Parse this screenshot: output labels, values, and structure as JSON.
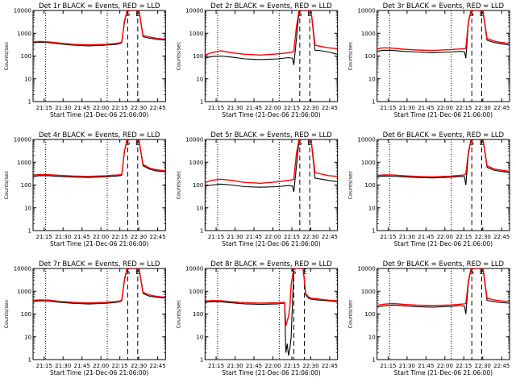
{
  "window": {
    "title": "Detector event and LLD count-rate plots"
  },
  "colors": {
    "events": "#000000",
    "lld": "#ff0000",
    "background": "#ffffff"
  },
  "chart_data": [
    {
      "type": "line",
      "title": "Det 1r BLACK = Events, RED = LLD",
      "ylabel": "Counts/sec",
      "xlabel": "Start Time (21-Dec-06 21:06:00)",
      "ylim": [
        1,
        10000
      ],
      "yscale": "log",
      "xlim": [
        0,
        100
      ],
      "xticks": [
        "21:15",
        "21:30",
        "21:45",
        "22:00",
        "22:15",
        "22:30",
        "22:45"
      ],
      "yticks": [
        "1",
        "10",
        "100",
        "1000",
        "10000"
      ],
      "markers": {
        "S": 71.5,
        "E": 79
      },
      "series": [
        {
          "name": "Events",
          "x": [
            0,
            5,
            12,
            20,
            30,
            42,
            55,
            63,
            66,
            67,
            69,
            71,
            72,
            74,
            78,
            80,
            83,
            88,
            93,
            100
          ],
          "y": [
            380,
            400,
            390,
            340,
            300,
            280,
            300,
            330,
            360,
            400,
            3000,
            10000,
            10000,
            10000,
            10000,
            9000,
            700,
            600,
            550,
            500
          ]
        },
        {
          "name": "LLD",
          "x": [
            0,
            5,
            12,
            20,
            30,
            42,
            55,
            63,
            66,
            67,
            69,
            71,
            72,
            74,
            78,
            80,
            83,
            88,
            93,
            100
          ],
          "y": [
            420,
            440,
            420,
            370,
            330,
            310,
            330,
            360,
            390,
            420,
            3500,
            10000,
            10000,
            10000,
            10000,
            10000,
            800,
            680,
            600,
            540
          ]
        }
      ]
    },
    {
      "type": "line",
      "title": "Det 2r BLACK = Events, RED = LLD",
      "ylabel": "Counts/sec",
      "xlabel": "Start Time (21-Dec-06 21:06:00)",
      "ylim": [
        1,
        10000
      ],
      "yscale": "log",
      "xlim": [
        0,
        100
      ],
      "xticks": [
        "21:15",
        "21:30",
        "21:45",
        "22:00",
        "22:15",
        "22:30",
        "22:45"
      ],
      "yticks": [
        "1",
        "10",
        "100",
        "1000",
        "10000"
      ],
      "markers": {
        "S": 71.5,
        "E": 79
      },
      "series": [
        {
          "name": "Events",
          "x": [
            0,
            5,
            12,
            20,
            30,
            42,
            55,
            63,
            66,
            67,
            69,
            71,
            72,
            74,
            78,
            80,
            83,
            88,
            93,
            100
          ],
          "y": [
            80,
            95,
            100,
            90,
            75,
            70,
            75,
            85,
            80,
            40,
            600,
            10000,
            10000,
            10000,
            10000,
            10000,
            180,
            170,
            150,
            120
          ]
        },
        {
          "name": "LLD",
          "x": [
            0,
            5,
            12,
            20,
            30,
            42,
            55,
            63,
            66,
            67,
            69,
            71,
            72,
            74,
            78,
            80,
            83,
            88,
            93,
            100
          ],
          "y": [
            110,
            140,
            170,
            140,
            120,
            110,
            125,
            140,
            150,
            160,
            2000,
            10000,
            10000,
            10000,
            10000,
            10000,
            300,
            260,
            230,
            210
          ]
        }
      ]
    },
    {
      "type": "line",
      "title": "Det 3r BLACK = Events, RED = LLD",
      "ylabel": "Counts/sec",
      "xlabel": "Start Time (21-Dec-06 21:06:00)",
      "ylim": [
        1,
        10000
      ],
      "yscale": "log",
      "xlim": [
        0,
        100
      ],
      "xticks": [
        "21:15",
        "21:30",
        "21:45",
        "22:00",
        "22:15",
        "22:30",
        "22:45"
      ],
      "yticks": [
        "1",
        "10",
        "100",
        "1000",
        "10000"
      ],
      "markers": {
        "S": 71.5,
        "E": 79
      },
      "series": [
        {
          "name": "Events",
          "x": [
            0,
            5,
            12,
            20,
            30,
            42,
            55,
            63,
            66,
            67,
            69,
            71,
            72,
            74,
            78,
            80,
            83,
            88,
            93,
            100
          ],
          "y": [
            160,
            180,
            175,
            160,
            150,
            140,
            150,
            160,
            150,
            80,
            3000,
            10000,
            10000,
            10000,
            10000,
            8000,
            500,
            400,
            350,
            300
          ]
        },
        {
          "name": "LLD",
          "x": [
            0,
            5,
            12,
            20,
            30,
            42,
            55,
            63,
            66,
            67,
            69,
            71,
            72,
            74,
            78,
            80,
            83,
            88,
            93,
            100
          ],
          "y": [
            210,
            230,
            220,
            200,
            185,
            175,
            190,
            205,
            210,
            220,
            3500,
            10000,
            10000,
            10000,
            10000,
            9000,
            600,
            460,
            400,
            350
          ]
        }
      ]
    },
    {
      "type": "line",
      "title": "Det 4r BLACK = Events, RED = LLD",
      "ylabel": "Counts/sec",
      "xlabel": "Start Time (21-Dec-06 21:06:00)",
      "ylim": [
        1,
        10000
      ],
      "yscale": "log",
      "xlim": [
        0,
        100
      ],
      "xticks": [
        "21:15",
        "21:30",
        "21:45",
        "22:00",
        "22:15",
        "22:30",
        "22:45"
      ],
      "yticks": [
        "1",
        "10",
        "100",
        "1000",
        "10000"
      ],
      "markers": {
        "S": 71.5,
        "E": 79
      },
      "series": [
        {
          "name": "Events",
          "x": [
            0,
            5,
            12,
            20,
            30,
            42,
            55,
            63,
            66,
            67,
            69,
            71,
            72,
            74,
            78,
            80,
            83,
            88,
            93,
            100
          ],
          "y": [
            240,
            260,
            255,
            240,
            225,
            215,
            230,
            250,
            260,
            280,
            3000,
            10000,
            10000,
            10000,
            10000,
            8000,
            700,
            500,
            420,
            380
          ]
        },
        {
          "name": "LLD",
          "x": [
            0,
            5,
            12,
            20,
            30,
            42,
            55,
            63,
            66,
            67,
            69,
            71,
            72,
            74,
            78,
            80,
            83,
            88,
            93,
            100
          ],
          "y": [
            270,
            290,
            285,
            265,
            250,
            240,
            255,
            275,
            285,
            300,
            3300,
            10000,
            10000,
            10000,
            10000,
            9000,
            800,
            560,
            470,
            420
          ]
        }
      ]
    },
    {
      "type": "line",
      "title": "Det 5r BLACK = Events, RED = LLD",
      "ylabel": "Counts/sec",
      "xlabel": "Start Time (21-Dec-06 21:06:00)",
      "ylim": [
        1,
        10000
      ],
      "yscale": "log",
      "xlim": [
        0,
        100
      ],
      "xticks": [
        "21:15",
        "21:30",
        "21:45",
        "22:00",
        "22:15",
        "22:30",
        "22:45"
      ],
      "yticks": [
        "1",
        "10",
        "100",
        "1000",
        "10000"
      ],
      "markers": {
        "S": 71.5,
        "E": 79
      },
      "series": [
        {
          "name": "Events",
          "x": [
            0,
            5,
            12,
            20,
            30,
            42,
            55,
            63,
            66,
            67,
            69,
            71,
            72,
            74,
            78,
            80,
            83,
            88,
            93,
            100
          ],
          "y": [
            90,
            100,
            110,
            100,
            85,
            80,
            85,
            95,
            90,
            50,
            700,
            10000,
            10000,
            10000,
            10000,
            10000,
            200,
            180,
            160,
            140
          ]
        },
        {
          "name": "LLD",
          "x": [
            0,
            5,
            12,
            20,
            30,
            42,
            55,
            63,
            66,
            67,
            69,
            71,
            72,
            74,
            78,
            80,
            83,
            88,
            93,
            100
          ],
          "y": [
            130,
            160,
            180,
            160,
            130,
            120,
            140,
            160,
            170,
            180,
            2500,
            10000,
            10000,
            10000,
            10000,
            10000,
            350,
            300,
            260,
            240
          ]
        }
      ]
    },
    {
      "type": "line",
      "title": "Det 6r BLACK = Events, RED = LLD",
      "ylabel": "Counts/sec",
      "xlabel": "Start Time (21-Dec-06 21:06:00)",
      "ylim": [
        1,
        10000
      ],
      "yscale": "log",
      "xlim": [
        0,
        100
      ],
      "xticks": [
        "21:15",
        "21:30",
        "21:45",
        "22:00",
        "22:15",
        "22:30",
        "22:45"
      ],
      "yticks": [
        "1",
        "10",
        "100",
        "1000",
        "10000"
      ],
      "markers": {
        "S": 71.5,
        "E": 79
      },
      "series": [
        {
          "name": "Events",
          "x": [
            0,
            5,
            12,
            20,
            30,
            42,
            55,
            63,
            66,
            67,
            69,
            71,
            72,
            74,
            78,
            80,
            83,
            88,
            93,
            100
          ],
          "y": [
            230,
            250,
            245,
            230,
            215,
            205,
            220,
            240,
            230,
            100,
            2500,
            10000,
            10000,
            10000,
            10000,
            9000,
            600,
            450,
            400,
            360
          ]
        },
        {
          "name": "LLD",
          "x": [
            0,
            5,
            12,
            20,
            30,
            42,
            55,
            63,
            66,
            67,
            69,
            71,
            72,
            74,
            78,
            80,
            83,
            88,
            93,
            100
          ],
          "y": [
            260,
            280,
            275,
            255,
            240,
            230,
            245,
            265,
            280,
            300,
            3000,
            10000,
            10000,
            10000,
            10000,
            10000,
            700,
            520,
            450,
            400
          ]
        }
      ]
    },
    {
      "type": "line",
      "title": "Det 7r BLACK = Events, RED = LLD",
      "ylabel": "Counts/sec",
      "xlabel": "Start Time (21-Dec-06 21:06:00)",
      "ylim": [
        1,
        10000
      ],
      "yscale": "log",
      "xlim": [
        0,
        100
      ],
      "xticks": [
        "21:15",
        "21:30",
        "21:45",
        "22:00",
        "22:15",
        "22:30",
        "22:45"
      ],
      "yticks": [
        "1",
        "10",
        "100",
        "1000",
        "10000"
      ],
      "markers": {
        "S": 71.5,
        "E": 79
      },
      "series": [
        {
          "name": "Events",
          "x": [
            0,
            5,
            12,
            20,
            30,
            42,
            55,
            63,
            66,
            67,
            69,
            71,
            72,
            74,
            78,
            80,
            83,
            88,
            93,
            100
          ],
          "y": [
            360,
            380,
            375,
            330,
            295,
            275,
            295,
            325,
            355,
            390,
            3000,
            10000,
            10000,
            10000,
            10000,
            9000,
            800,
            600,
            550,
            500
          ]
        },
        {
          "name": "LLD",
          "x": [
            0,
            5,
            12,
            20,
            30,
            42,
            55,
            63,
            66,
            67,
            69,
            71,
            72,
            74,
            78,
            80,
            83,
            88,
            93,
            100
          ],
          "y": [
            400,
            420,
            410,
            360,
            325,
            305,
            325,
            355,
            385,
            420,
            3500,
            10000,
            10000,
            10000,
            10000,
            10000,
            900,
            680,
            600,
            540
          ]
        }
      ]
    },
    {
      "type": "line",
      "title": "Det 8r BLACK = Events, RED = LLD",
      "ylabel": "Counts/sec",
      "xlabel": "Start Time (21-Dec-06 21:06:00)",
      "ylim": [
        1,
        10000
      ],
      "yscale": "log",
      "xlim": [
        0,
        100
      ],
      "xticks": [
        "21:15",
        "21:30",
        "21:45",
        "22:00",
        "22:15",
        "22:30",
        "22:45"
      ],
      "yticks": [
        "1",
        "10",
        "100",
        "1000",
        "10000"
      ],
      "markers": {
        "S": 67,
        "E": 75
      },
      "series": [
        {
          "name": "Events",
          "x": [
            0,
            5,
            12,
            20,
            30,
            42,
            55,
            60,
            61,
            62,
            63,
            64,
            65,
            67,
            68,
            70,
            74,
            76,
            78,
            80,
            84,
            88,
            93,
            100
          ],
          "y": [
            330,
            350,
            345,
            310,
            280,
            265,
            280,
            300,
            2,
            5,
            1.5,
            3,
            10,
            10000,
            10000,
            10000,
            10000,
            700,
            500,
            450,
            420,
            400,
            380,
            350
          ]
        },
        {
          "name": "LLD",
          "x": [
            0,
            5,
            12,
            20,
            30,
            42,
            55,
            60,
            61,
            62,
            63,
            64,
            65,
            67,
            68,
            70,
            74,
            76,
            78,
            80,
            84,
            88,
            93,
            100
          ],
          "y": [
            370,
            390,
            385,
            345,
            315,
            300,
            315,
            330,
            30,
            50,
            80,
            200,
            2000,
            10000,
            10000,
            10000,
            10000,
            800,
            560,
            500,
            470,
            440,
            410,
            380
          ]
        }
      ]
    },
    {
      "type": "line",
      "title": "Det 9r BLACK = Events, RED = LLD",
      "ylabel": "Counts/sec",
      "xlabel": "Start Time (21-Dec-06 21:06:00)",
      "ylim": [
        1,
        10000
      ],
      "yscale": "log",
      "xlim": [
        0,
        100
      ],
      "xticks": [
        "21:15",
        "21:30",
        "21:45",
        "22:00",
        "22:15",
        "22:30",
        "22:45"
      ],
      "yticks": [
        "1",
        "10",
        "100",
        "1000",
        "10000"
      ],
      "markers": {
        "S": 71.5,
        "E": 79
      },
      "series": [
        {
          "name": "Events",
          "x": [
            0,
            5,
            12,
            20,
            30,
            42,
            55,
            63,
            66,
            67,
            69,
            71,
            72,
            74,
            78,
            80,
            83,
            88,
            93,
            100
          ],
          "y": [
            200,
            230,
            250,
            230,
            210,
            200,
            215,
            235,
            220,
            100,
            2500,
            10000,
            10000,
            10000,
            10000,
            9000,
            400,
            350,
            320,
            300
          ]
        },
        {
          "name": "LLD",
          "x": [
            0,
            5,
            12,
            20,
            30,
            42,
            55,
            63,
            66,
            67,
            69,
            71,
            72,
            74,
            78,
            80,
            83,
            88,
            93,
            100
          ],
          "y": [
            240,
            270,
            290,
            265,
            245,
            235,
            250,
            270,
            280,
            290,
            3000,
            10000,
            10000,
            10000,
            10000,
            10000,
            500,
            420,
            380,
            350
          ]
        }
      ]
    }
  ]
}
